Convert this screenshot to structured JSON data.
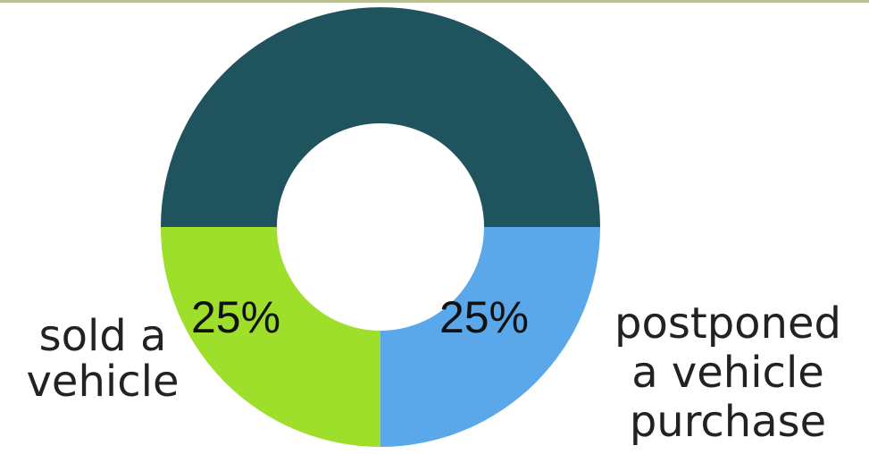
{
  "chart_data": {
    "type": "pie",
    "style": "donut",
    "slices": [
      {
        "value": 50,
        "label": "",
        "color": "#1f535d"
      },
      {
        "value": 25,
        "label": "25%",
        "color": "#5aa7ea",
        "category": [
          "postponed",
          "a vehicle",
          "purchase"
        ]
      },
      {
        "value": 25,
        "label": "25%",
        "color": "#9ddf2b",
        "category": [
          "sold a",
          "vehicle"
        ]
      }
    ],
    "legend": "none"
  },
  "colors": {
    "top_rule": "#b9bf8f",
    "background": "#ffffff"
  }
}
